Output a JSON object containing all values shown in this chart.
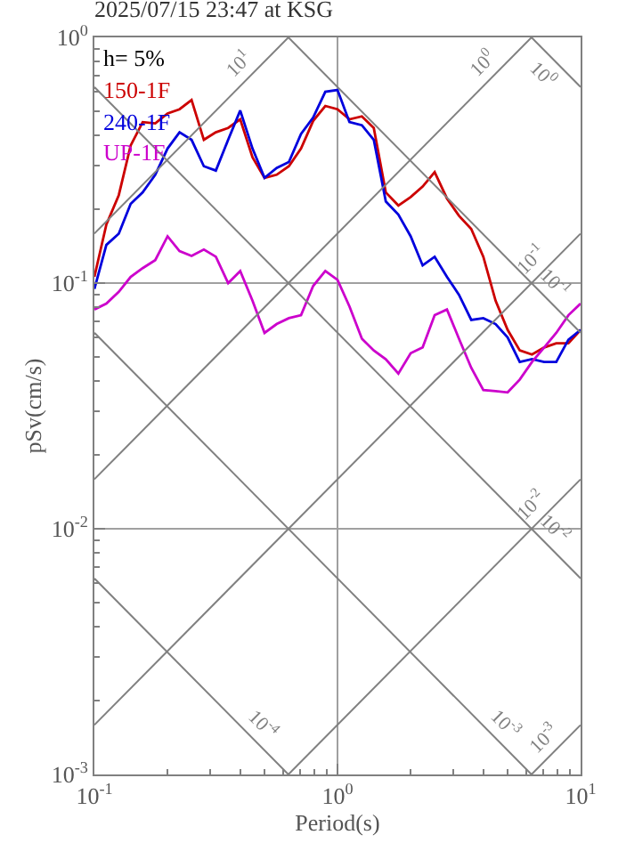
{
  "chart_data": {
    "type": "line",
    "title": "2025/07/15 23:47 at KSG",
    "xlabel": "Period(s)",
    "ylabel": "pSv(cm/s)",
    "annotations": [
      "h= 5%"
    ],
    "log": "xy",
    "grid": true,
    "legend": "top left",
    "xlim": [
      0.1,
      10
    ],
    "ylim": [
      0.001,
      1
    ],
    "xticks": [
      {
        "value": 0.1,
        "label": "10$^{-1}$"
      },
      {
        "value": 0.2,
        "label": null
      },
      {
        "value": 0.3,
        "label": null
      },
      {
        "value": 0.4,
        "label": null
      },
      {
        "value": 0.5,
        "label": null
      },
      {
        "value": 0.6,
        "label": null
      },
      {
        "value": 0.7,
        "label": null
      },
      {
        "value": 0.8,
        "label": null
      },
      {
        "value": 0.9,
        "label": null
      },
      {
        "value": 1,
        "label": "10$^{0}$"
      },
      {
        "value": 2,
        "label": null
      },
      {
        "value": 3,
        "label": null
      },
      {
        "value": 4,
        "label": null
      },
      {
        "value": 5,
        "label": null
      },
      {
        "value": 6,
        "label": null
      },
      {
        "value": 7,
        "label": null
      },
      {
        "value": 8,
        "label": null
      },
      {
        "value": 9,
        "label": null
      },
      {
        "value": 10,
        "label": "10$^{1}$"
      }
    ],
    "yticks": [
      {
        "value": 0.001,
        "label": "10$^{-3}$"
      },
      {
        "value": 0.002,
        "label": null
      },
      {
        "value": 0.003,
        "label": null
      },
      {
        "value": 0.004,
        "label": null
      },
      {
        "value": 0.005,
        "label": null
      },
      {
        "value": 0.006,
        "label": null
      },
      {
        "value": 0.007,
        "label": null
      },
      {
        "value": 0.008,
        "label": null
      },
      {
        "value": 0.009,
        "label": null
      },
      {
        "value": 0.01,
        "label": "10$^{-2}$"
      },
      {
        "value": 0.02,
        "label": null
      },
      {
        "value": 0.03,
        "label": null
      },
      {
        "value": 0.04,
        "label": null
      },
      {
        "value": 0.05,
        "label": null
      },
      {
        "value": 0.06,
        "label": null
      },
      {
        "value": 0.07,
        "label": null
      },
      {
        "value": 0.08,
        "label": null
      },
      {
        "value": 0.09,
        "label": null
      },
      {
        "value": 0.1,
        "label": "10$^{-1}$"
      },
      {
        "value": 0.2,
        "label": null
      },
      {
        "value": 0.3,
        "label": null
      },
      {
        "value": 0.4,
        "label": null
      },
      {
        "value": 0.5,
        "label": null
      },
      {
        "value": 0.6,
        "label": null
      },
      {
        "value": 0.7,
        "label": null
      },
      {
        "value": 0.8,
        "label": null
      },
      {
        "value": 0.9,
        "label": null
      },
      {
        "value": 1,
        "label": "10$^{0}$"
      }
    ],
    "x": [
      0.1,
      0.112,
      0.126,
      0.141,
      0.158,
      0.178,
      0.2,
      0.224,
      0.251,
      0.282,
      0.316,
      0.355,
      0.398,
      0.447,
      0.501,
      0.562,
      0.631,
      0.708,
      0.794,
      0.891,
      1,
      1.12,
      1.26,
      1.41,
      1.58,
      1.78,
      2,
      2.24,
      2.51,
      2.82,
      3.16,
      3.55,
      3.98,
      4.47,
      5.01,
      5.62,
      6.31,
      7.08,
      7.94,
      8.91,
      10
    ],
    "series": [
      {
        "name": "150-1F",
        "color": "#cc0000",
        "values": [
          0.106,
          0.173,
          0.228,
          0.363,
          0.452,
          0.447,
          0.49,
          0.51,
          0.556,
          0.383,
          0.411,
          0.428,
          0.464,
          0.325,
          0.268,
          0.276,
          0.299,
          0.353,
          0.457,
          0.526,
          0.51,
          0.464,
          0.477,
          0.428,
          0.234,
          0.207,
          0.224,
          0.247,
          0.283,
          0.221,
          0.188,
          0.166,
          0.128,
          0.0848,
          0.0645,
          0.0532,
          0.0512,
          0.0547,
          0.0569,
          0.0569,
          0.0645
        ]
      },
      {
        "name": "240-1F",
        "color": "#0000dd",
        "values": [
          0.0947,
          0.143,
          0.159,
          0.21,
          0.234,
          0.276,
          0.353,
          0.411,
          0.383,
          0.299,
          0.287,
          0.383,
          0.504,
          0.353,
          0.268,
          0.294,
          0.311,
          0.405,
          0.472,
          0.601,
          0.611,
          0.452,
          0.439,
          0.383,
          0.215,
          0.19,
          0.155,
          0.118,
          0.128,
          0.106,
          0.0896,
          0.0708,
          0.072,
          0.0681,
          0.0601,
          0.0477,
          0.049,
          0.0477,
          0.0477,
          0.0588,
          0.0645
        ]
      },
      {
        "name": "UP-1F",
        "color": "#cc00cc",
        "values": [
          0.0781,
          0.0825,
          0.0921,
          0.106,
          0.115,
          0.124,
          0.155,
          0.135,
          0.129,
          0.137,
          0.128,
          0.1,
          0.112,
          0.0848,
          0.0627,
          0.0681,
          0.072,
          0.074,
          0.0973,
          0.112,
          0.103,
          0.0803,
          0.0594,
          0.0532,
          0.049,
          0.0428,
          0.0518,
          0.0547,
          0.074,
          0.0781,
          0.0594,
          0.0452,
          0.0367,
          0.0363,
          0.0359,
          0.0405,
          0.0477,
          0.0547,
          0.0627,
          0.074,
          0.0825
        ]
      },
      {
        "name": "10$^{1}$",
        "color": "#808080",
        "x": [
          0.1,
          0.628
        ],
        "values": [
          0.159,
          1
        ]
      },
      {
        "name": "10$^{0}$",
        "color": "#808080",
        "x": [
          0.1,
          6.28
        ],
        "values": [
          0.0159,
          1
        ]
      },
      {
        "name": "10$^{-1}$",
        "color": "#808080",
        "x": [
          0.1,
          10
        ],
        "values": [
          0.00159,
          0.159
        ]
      },
      {
        "name": "10$^{-2}$",
        "color": "#808080",
        "x": [
          0.628,
          10
        ],
        "values": [
          0.001,
          0.0159
        ]
      },
      {
        "name": "10$^{-3}$",
        "color": "#808080",
        "x": [
          6.28,
          10
        ],
        "values": [
          0.001,
          0.00159
        ]
      },
      {
        "name": "10$^{0}$",
        "color": "#808080",
        "x": [
          6.28,
          10
        ],
        "values": [
          1,
          0.628
        ]
      },
      {
        "name": "10$^{-1}$",
        "color": "#808080",
        "x": [
          0.628,
          10
        ],
        "values": [
          1,
          0.0628
        ]
      },
      {
        "name": "10$^{-2}$",
        "color": "#808080",
        "x": [
          0.1,
          10
        ],
        "values": [
          0.628,
          0.00628
        ]
      },
      {
        "name": "10$^{-3}$",
        "color": "#808080",
        "x": [
          0.1,
          6.28
        ],
        "values": [
          0.0628,
          0.001
        ]
      },
      {
        "name": "10$^{-4}$",
        "color": "#808080",
        "x": [
          0.1,
          0.628
        ],
        "values": [
          0.00628,
          0.001
        ]
      }
    ]
  }
}
